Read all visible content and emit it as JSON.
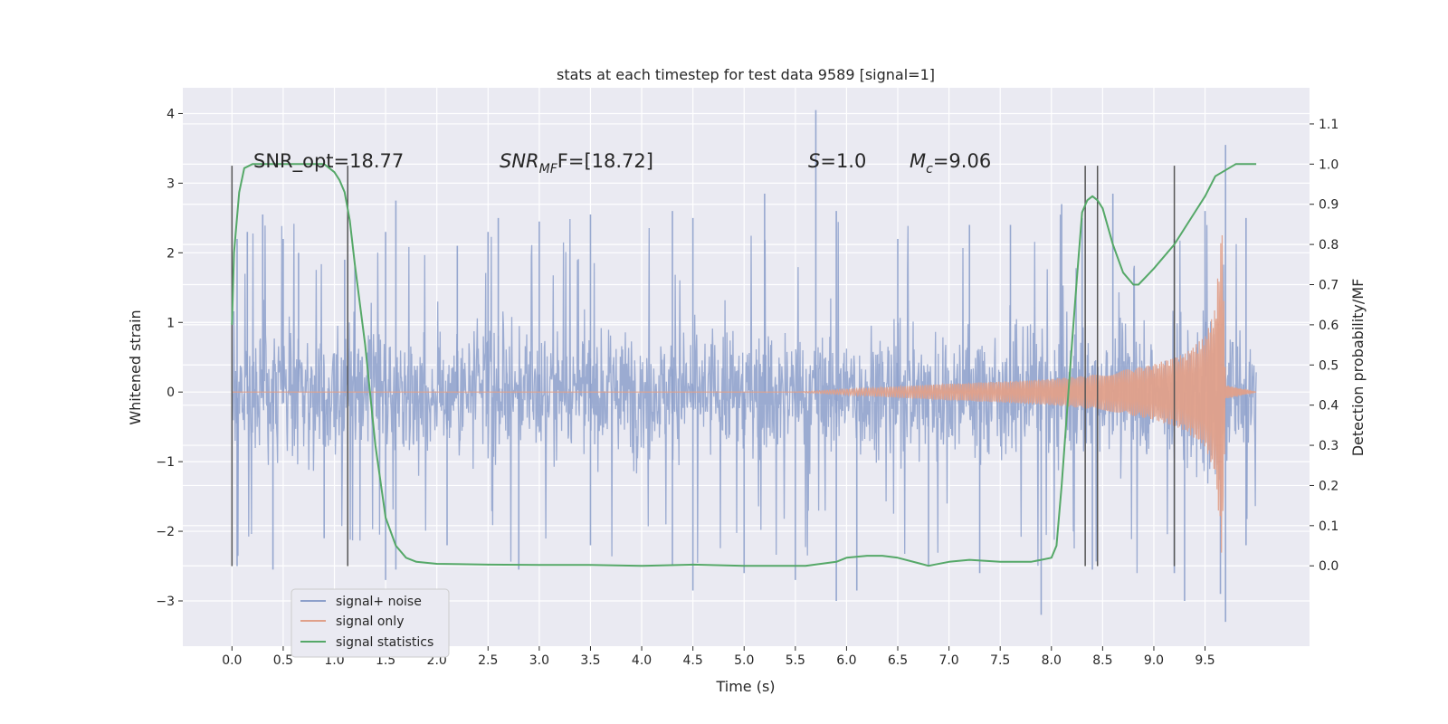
{
  "chart_data": {
    "type": "line",
    "title": "stats at each timestep for test data 9589 [signal=1]",
    "xlabel": "Time (s)",
    "ylabel_left": "Whitened strain",
    "ylabel_right": "Detection probability/MF",
    "xlim": [
      -0.48,
      10.52
    ],
    "ylim_left": [
      -3.65,
      4.37
    ],
    "ylim_right": [
      -0.2,
      1.19
    ],
    "xticks": [
      "0.0",
      "0.5",
      "1.0",
      "1.5",
      "2.0",
      "2.5",
      "3.0",
      "3.5",
      "4.0",
      "4.5",
      "5.0",
      "5.5",
      "6.0",
      "6.5",
      "7.0",
      "7.5",
      "8.0",
      "8.5",
      "9.0",
      "9.5"
    ],
    "xtick_values": [
      0,
      0.5,
      1,
      1.5,
      2,
      2.5,
      3,
      3.5,
      4,
      4.5,
      5,
      5.5,
      6,
      6.5,
      7,
      7.5,
      8,
      8.5,
      9,
      9.5
    ],
    "yticks_left": [
      "4",
      "3",
      "2",
      "1",
      "0",
      "−1",
      "−2",
      "−3"
    ],
    "ytick_values_left": [
      4,
      3,
      2,
      1,
      0,
      -1,
      -2,
      -3
    ],
    "yticks_right": [
      "1.1",
      "1.0",
      "0.9",
      "0.8",
      "0.7",
      "0.6",
      "0.5",
      "0.4",
      "0.3",
      "0.2",
      "0.1",
      "0.0"
    ],
    "ytick_values_right": [
      1.1,
      1.0,
      0.9,
      0.8,
      0.7,
      0.6,
      0.5,
      0.4,
      0.3,
      0.2,
      0.1,
      0.0
    ],
    "annotations": {
      "snr_opt": "SNR_opt=18.77",
      "snr_mf_main": "SNR",
      "snr_mf_sub": "MF",
      "snr_mf_rest": "F=[18.72]",
      "s_main": "S",
      "s_rest": "=1.0",
      "mc_main": "M",
      "mc_sub": "c",
      "mc_rest": "=9.06"
    },
    "series": [
      {
        "name": "signal+ noise",
        "color": "#8da0cb",
        "axis": "left",
        "description_values": "noise band roughly ±1.5 with spikes up to 4.05 at t≈5.7 and down to -3.3 at t≈9.7",
        "envelope": {
          "x": [
            0,
            10
          ],
          "typical": 1.5
        },
        "peaks": [
          [
            0.05,
            2.2
          ],
          [
            0.15,
            2.3
          ],
          [
            0.3,
            2.55
          ],
          [
            0.5,
            2.2
          ],
          [
            0.65,
            2.0
          ],
          [
            1.1,
            1.9
          ],
          [
            1.2,
            1.8
          ],
          [
            1.5,
            2.3
          ],
          [
            1.6,
            2.75
          ],
          [
            2.2,
            2.1
          ],
          [
            2.5,
            2.3
          ],
          [
            2.6,
            2.5
          ],
          [
            3.0,
            2.45
          ],
          [
            3.5,
            2.55
          ],
          [
            4.3,
            2.6
          ],
          [
            4.5,
            2.5
          ],
          [
            5.2,
            2.85
          ],
          [
            5.7,
            4.05
          ],
          [
            5.9,
            2.6
          ],
          [
            6.5,
            2.2
          ],
          [
            7.2,
            2.4
          ],
          [
            7.6,
            2.4
          ],
          [
            8.1,
            2.7
          ],
          [
            8.3,
            2.5
          ],
          [
            8.6,
            2.85
          ],
          [
            9.2,
            2.2
          ],
          [
            9.5,
            2.6
          ],
          [
            9.7,
            3.55
          ],
          [
            9.9,
            2.5
          ]
        ],
        "troughs": [
          [
            0.05,
            -2.5
          ],
          [
            0.4,
            -2.55
          ],
          [
            0.9,
            -2.1
          ],
          [
            1.5,
            -2.7
          ],
          [
            1.6,
            -2.55
          ],
          [
            2.1,
            -2.2
          ],
          [
            2.8,
            -2.55
          ],
          [
            3.5,
            -2.2
          ],
          [
            4.3,
            -2.5
          ],
          [
            4.5,
            -2.85
          ],
          [
            5.0,
            -2.6
          ],
          [
            5.5,
            -2.7
          ],
          [
            5.9,
            -3.0
          ],
          [
            6.1,
            -2.85
          ],
          [
            6.8,
            -2.5
          ],
          [
            7.3,
            -2.6
          ],
          [
            7.9,
            -3.2
          ],
          [
            8.4,
            -2.55
          ],
          [
            9.2,
            -2.6
          ],
          [
            9.3,
            -3.0
          ],
          [
            9.65,
            -2.9
          ],
          [
            9.7,
            -3.3
          ],
          [
            9.9,
            -2.2
          ]
        ]
      },
      {
        "name": "signal only",
        "color": "#e0a08a",
        "axis": "left",
        "chirp_start": 5.5,
        "chirp_merger": 9.67,
        "amplitude": [
          [
            5.5,
            0.0
          ],
          [
            6.0,
            0.04
          ],
          [
            6.5,
            0.08
          ],
          [
            7.0,
            0.12
          ],
          [
            7.5,
            0.15
          ],
          [
            8.0,
            0.19
          ],
          [
            8.5,
            0.26
          ],
          [
            9.0,
            0.4
          ],
          [
            9.3,
            0.55
          ],
          [
            9.5,
            0.8
          ],
          [
            9.6,
            1.2
          ],
          [
            9.67,
            2.5
          ],
          [
            9.7,
            0.1
          ],
          [
            10.0,
            0.0
          ]
        ]
      },
      {
        "name": "signal statistics",
        "color": "#55a868",
        "axis": "right",
        "x": [
          0.0,
          0.02,
          0.07,
          0.12,
          0.2,
          0.3,
          0.5,
          0.7,
          0.9,
          0.95,
          1.0,
          1.05,
          1.1,
          1.15,
          1.2,
          1.3,
          1.4,
          1.5,
          1.6,
          1.7,
          1.8,
          2.0,
          2.5,
          3.0,
          3.5,
          4.0,
          4.5,
          5.0,
          5.5,
          5.6,
          5.9,
          6.0,
          6.2,
          6.35,
          6.5,
          6.8,
          7.0,
          7.2,
          7.5,
          7.8,
          7.9,
          8.0,
          8.05,
          8.1,
          8.2,
          8.25,
          8.3,
          8.35,
          8.4,
          8.45,
          8.5,
          8.6,
          8.7,
          8.8,
          8.85,
          9.0,
          9.2,
          9.4,
          9.5,
          9.6,
          9.8,
          10.0
        ],
        "y": [
          0.6,
          0.78,
          0.93,
          0.99,
          1.0,
          1.0,
          1.0,
          1.0,
          1.0,
          0.99,
          0.98,
          0.96,
          0.93,
          0.86,
          0.75,
          0.55,
          0.3,
          0.12,
          0.05,
          0.02,
          0.01,
          0.005,
          0.003,
          0.002,
          0.002,
          0.0,
          0.003,
          0.0,
          0.0,
          0.0,
          0.01,
          0.02,
          0.025,
          0.025,
          0.02,
          0.0,
          0.01,
          0.015,
          0.01,
          0.01,
          0.015,
          0.02,
          0.05,
          0.2,
          0.55,
          0.72,
          0.88,
          0.91,
          0.92,
          0.91,
          0.89,
          0.8,
          0.73,
          0.7,
          0.7,
          0.74,
          0.8,
          0.88,
          0.92,
          0.97,
          1.0,
          1.0
        ]
      }
    ],
    "vertical_markers": [
      0.0,
      1.13,
      8.33,
      8.45,
      9.2
    ],
    "vertical_marker_range_left": [
      -2.5,
      3.25
    ],
    "legend": {
      "placement": "lower-left",
      "entries": [
        "signal+ noise",
        "signal only",
        "signal statistics"
      ]
    },
    "grid": true,
    "colors": {
      "plot_bg": "#eaeaf2",
      "grid": "#ffffff",
      "noise": "#8da0cb",
      "signal": "#e0a08a",
      "stats": "#55a868",
      "marker": "#555555"
    }
  }
}
